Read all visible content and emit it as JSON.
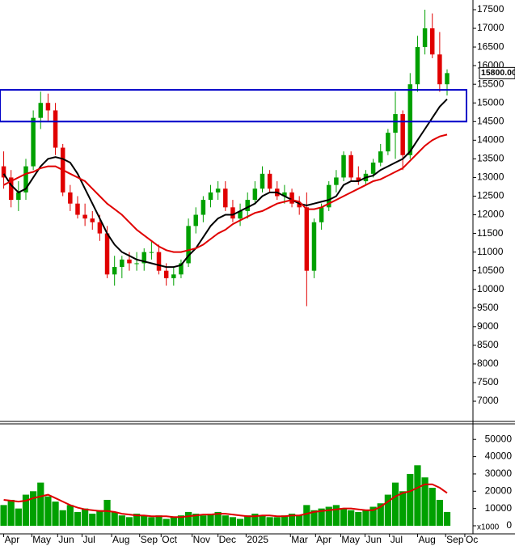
{
  "chart_data": {
    "type": "candlestick",
    "xlim": [
      -0.5,
      63.5
    ],
    "xticks": [
      {
        "value": 0,
        "label": "Apr"
      },
      {
        "value": 3.8,
        "label": "May"
      },
      {
        "value": 7.3,
        "label": "Jun"
      },
      {
        "value": 10.6,
        "label": "Jul"
      },
      {
        "value": 14.6,
        "label": "Aug"
      },
      {
        "value": 18.4,
        "label": "Sep"
      },
      {
        "value": 21.3,
        "label": "Oct"
      },
      {
        "value": 25.5,
        "label": "Nov"
      },
      {
        "value": 29,
        "label": "Dec"
      },
      {
        "value": 32.8,
        "label": "2025"
      },
      {
        "value": 38.8,
        "label": "Mar"
      },
      {
        "value": 42.2,
        "label": "Apr"
      },
      {
        "value": 45.6,
        "label": "May"
      },
      {
        "value": 48.9,
        "label": "Jun"
      },
      {
        "value": 52.2,
        "label": "Jul"
      },
      {
        "value": 56,
        "label": "Aug"
      },
      {
        "value": 59.8,
        "label": "Sep"
      },
      {
        "value": 62.4,
        "label": "Oc"
      }
    ],
    "ylim": [
      6480,
      17760
    ],
    "yticks": [
      7000,
      7500,
      8000,
      8500,
      9000,
      9500,
      10000,
      10500,
      11000,
      11500,
      12000,
      12500,
      13000,
      13500,
      14000,
      14500,
      15000,
      15500,
      16000,
      16500,
      17000,
      17500
    ],
    "up_color": "#00a000",
    "down_color": "#e00000",
    "open": [
      13300,
      13000,
      12400,
      12600,
      13300,
      14600,
      15000,
      14800,
      13800,
      12600,
      12300,
      12000,
      11900,
      11800,
      11500,
      10400,
      10600,
      10800,
      10700,
      10700,
      11000,
      11000,
      10500,
      10300,
      10400,
      10700,
      11700,
      12000,
      12400,
      12600,
      12700,
      12200,
      11900,
      12100,
      12400,
      12700,
      13100,
      12700,
      12500,
      12600,
      12300,
      12200,
      10500,
      11800,
      12200,
      12800,
      13000,
      13600,
      13000,
      12900,
      13100,
      13400,
      13700,
      14200,
      14700,
      13600,
      15500,
      16500,
      17000,
      16300,
      15500
    ],
    "high": [
      13700,
      13200,
      12900,
      13500,
      14800,
      15300,
      15250,
      15000,
      13900,
      12800,
      12500,
      12300,
      12100,
      12000,
      11700,
      10900,
      10900,
      11000,
      11000,
      11100,
      11300,
      11200,
      10700,
      10600,
      10800,
      11900,
      12200,
      12500,
      12800,
      12900,
      12900,
      12400,
      12300,
      12600,
      12900,
      13300,
      13200,
      12900,
      12800,
      12700,
      12500,
      12600,
      11900,
      12300,
      12900,
      13200,
      13700,
      13700,
      13300,
      13200,
      13500,
      13900,
      14300,
      15300,
      14800,
      15800,
      16800,
      17500,
      17400,
      16900,
      15900
    ],
    "low": [
      12700,
      12200,
      12100,
      12400,
      13200,
      14300,
      14500,
      13600,
      12500,
      12100,
      11900,
      11700,
      11600,
      11300,
      10300,
      10100,
      10300,
      10500,
      10500,
      10500,
      10800,
      10400,
      10100,
      10100,
      10300,
      10600,
      11500,
      11800,
      12200,
      12400,
      12100,
      11800,
      11700,
      11900,
      12300,
      12600,
      12600,
      12400,
      12300,
      12200,
      12000,
      9550,
      10300,
      11600,
      12100,
      12600,
      12900,
      12900,
      12800,
      12800,
      13000,
      13300,
      13600,
      13500,
      13200,
      13500,
      15300,
      16300,
      16200,
      15300,
      15200
    ],
    "close": [
      13000,
      12400,
      12600,
      13300,
      14600,
      15000,
      14800,
      13800,
      12600,
      12300,
      12000,
      11900,
      11800,
      11500,
      10400,
      10600,
      10800,
      10700,
      10700,
      11000,
      11000,
      10500,
      10300,
      10400,
      10700,
      11700,
      12000,
      12400,
      12600,
      12700,
      12200,
      11900,
      12100,
      12400,
      12700,
      13100,
      12700,
      12500,
      12600,
      12300,
      12200,
      10500,
      11800,
      12200,
      12800,
      13000,
      13600,
      13000,
      12900,
      13100,
      13400,
      13700,
      14200,
      14700,
      13600,
      15500,
      16500,
      17000,
      16300,
      15500,
      15800
    ],
    "series": [
      {
        "color": "#000000",
        "values": [
          13100,
          12800,
          12600,
          12700,
          13000,
          13300,
          13500,
          13550,
          13500,
          13400,
          13100,
          12700,
          12300,
          11900,
          11500,
          11200,
          11000,
          10900,
          10800,
          10750,
          10700,
          10650,
          10600,
          10600,
          10650,
          10900,
          11100,
          11400,
          11700,
          11900,
          12000,
          12000,
          12100,
          12200,
          12300,
          12500,
          12600,
          12600,
          12500,
          12400,
          12300,
          12250,
          12300,
          12350,
          12400,
          12500,
          12800,
          12900,
          12900,
          13000,
          13050,
          13200,
          13300,
          13400,
          13500,
          13700,
          14000,
          14300,
          14600,
          14900,
          15100
        ]
      },
      {
        "color": "#e00000",
        "values": [
          12800,
          12900,
          13000,
          13100,
          13150,
          13250,
          13300,
          13300,
          13200,
          13100,
          13000,
          12900,
          12700,
          12500,
          12300,
          12150,
          12000,
          11800,
          11600,
          11450,
          11300,
          11150,
          11050,
          11000,
          11000,
          11050,
          11100,
          11200,
          11350,
          11500,
          11600,
          11750,
          11850,
          11950,
          12050,
          12100,
          12200,
          12300,
          12350,
          12400,
          12350,
          12150,
          12150,
          12200,
          12300,
          12400,
          12500,
          12600,
          12700,
          12800,
          12900,
          12950,
          13050,
          13150,
          13250,
          13450,
          13650,
          13850,
          14000,
          14100,
          14150
        ]
      }
    ],
    "highlight_band": {
      "ylim": [
        14500,
        15350
      ],
      "color": "#0000c8"
    },
    "last_price": {
      "value": 15800,
      "label": "15800.00"
    },
    "volume": {
      "ylim": [
        0,
        59000
      ],
      "yticks": [
        0,
        10000,
        20000,
        30000,
        40000,
        50000
      ],
      "unit_label": "x1000",
      "color": "#00a000",
      "values": [
        12000,
        15000,
        10000,
        18000,
        20000,
        25000,
        17000,
        14000,
        9000,
        12000,
        8000,
        10000,
        7000,
        9000,
        15000,
        8000,
        6000,
        5000,
        7000,
        6000,
        5000,
        6000,
        4000,
        5000,
        6000,
        8000,
        7000,
        6000,
        7000,
        8000,
        6000,
        5000,
        4000,
        6000,
        7000,
        6000,
        5000,
        5000,
        6000,
        7000,
        6000,
        12000,
        9000,
        10000,
        11000,
        12000,
        10000,
        9000,
        8000,
        9000,
        11000,
        13000,
        18000,
        25000,
        20000,
        30000,
        35000,
        28000,
        22000,
        15000,
        8000
      ],
      "ma": {
        "color": "#e00000",
        "values": [
          15000,
          14500,
          14000,
          14500,
          16000,
          17000,
          18000,
          16000,
          14000,
          12000,
          10500,
          9500,
          9000,
          8500,
          8500,
          8000,
          7000,
          6500,
          6000,
          6000,
          5500,
          5500,
          5500,
          5000,
          5000,
          5500,
          6000,
          6500,
          6500,
          7000,
          7000,
          6500,
          6000,
          5500,
          5500,
          6000,
          6000,
          5500,
          5500,
          6000,
          6000,
          7000,
          8000,
          8500,
          9000,
          9500,
          10000,
          10000,
          9500,
          9000,
          9000,
          11000,
          14000,
          17000,
          19000,
          20000,
          22000,
          24000,
          24000,
          22000,
          19000
        ]
      }
    }
  }
}
